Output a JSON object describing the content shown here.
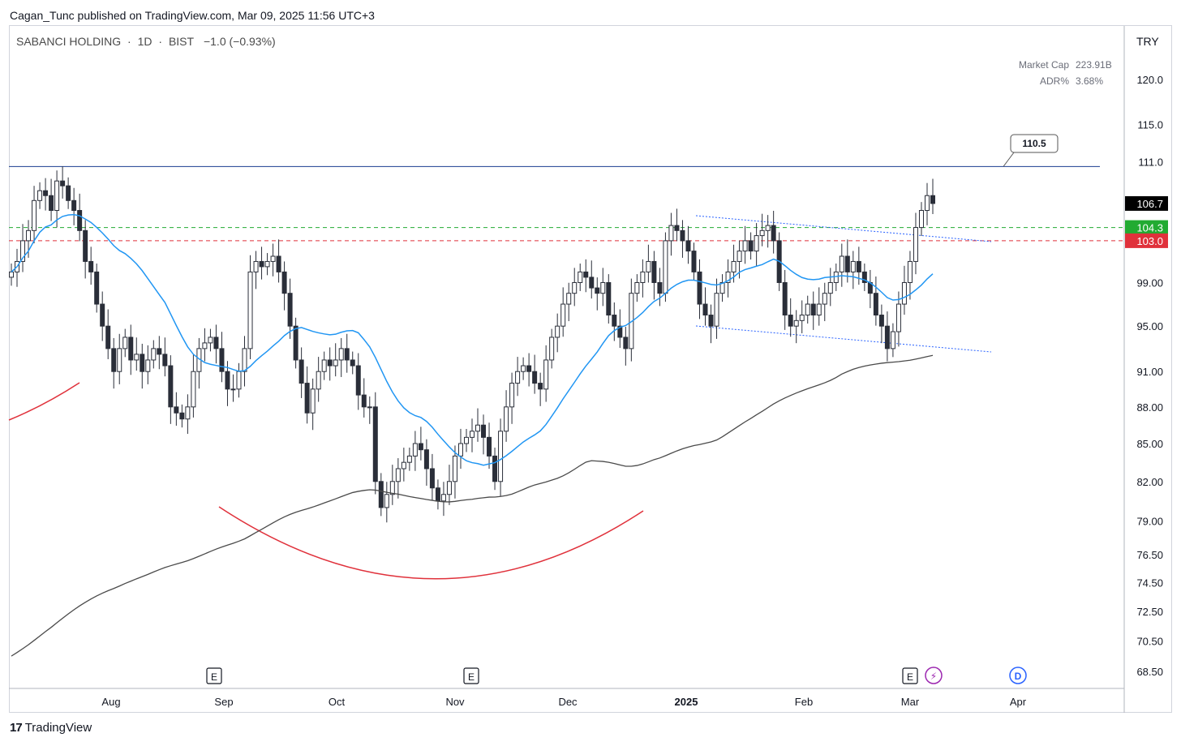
{
  "header": {
    "publisher_line": "Cagan_Tunc published on TradingView.com, Mar 09, 2025 11:56 UTC+3"
  },
  "symbol": {
    "name": "SABANCI HOLDING",
    "interval": "1D",
    "exchange": "BIST",
    "change": "−1.0 (−0.93%)",
    "separator": "·"
  },
  "stats": {
    "market_cap_label": "Market Cap",
    "market_cap_value": "223.91B",
    "adr_label": "ADR%",
    "adr_value": "3.68%"
  },
  "currency": "TRY",
  "footer": {
    "logo_glyph": "17",
    "brand": "TradingView"
  },
  "colors": {
    "up_candle": "#ffffff",
    "down_candle": "#2a2e39",
    "wick": "#2a2e39",
    "ma_blue": "#2196f3",
    "ma_dark": "#4a4a4a",
    "resistance_blue": "#1a3d8f",
    "green_level": "#22ab32",
    "red_level": "#e0313b",
    "arc_red": "#e0313b",
    "channel_blue": "#2962ff",
    "price_label_black": "#000000"
  },
  "chart_data": {
    "type": "candlestick",
    "price_axis": {
      "ticks": [
        "120.0",
        "115.0",
        "111.0",
        "99.00",
        "95.00",
        "91.00",
        "88.00",
        "85.00",
        "82.00",
        "79.00",
        "76.50",
        "74.50",
        "72.50",
        "70.50",
        "68.50"
      ],
      "scale": "log"
    },
    "time_axis": {
      "ticks": [
        "Aug",
        "Sep",
        "Oct",
        "Nov",
        "Dec",
        "2025",
        "Feb",
        "Mar",
        "Apr"
      ],
      "bold_ticks": [
        "2025"
      ]
    },
    "price_labels": [
      {
        "value": "106.7",
        "color": "#000000",
        "text_color": "#ffffff"
      },
      {
        "value": "104.3",
        "color": "#22ab32",
        "text_color": "#ffffff"
      },
      {
        "value": "103.0",
        "color": "#e0313b",
        "text_color": "#ffffff"
      }
    ],
    "horizontal_levels": [
      {
        "price": 110.5,
        "style": "solid",
        "color": "#1a3d8f",
        "label": "110.5"
      },
      {
        "price": 104.3,
        "style": "dashed",
        "color": "#22ab32"
      },
      {
        "price": 103.0,
        "style": "dashed",
        "color": "#e0313b"
      }
    ],
    "events": [
      {
        "date": "Aug",
        "type": "earnings",
        "label": "E"
      },
      {
        "date": "Oct",
        "type": "earnings",
        "label": "E"
      },
      {
        "date": "Feb",
        "type": "earnings",
        "label": "E"
      },
      {
        "date": "Mar",
        "type": "flash",
        "label": "⚡"
      },
      {
        "date": "Apr",
        "type": "dividend",
        "label": "D"
      }
    ],
    "last_close": 106.7,
    "candle_closes_approx": [
      100,
      101,
      103,
      104,
      107,
      108,
      107.5,
      106,
      109,
      108.5,
      107,
      106,
      104,
      101,
      100,
      97,
      95,
      93,
      91,
      93,
      94,
      92,
      92.5,
      91,
      92,
      93,
      92.5,
      91.5,
      88,
      87.5,
      87,
      88,
      91,
      93,
      93.5,
      94,
      93,
      91,
      89.5,
      89.5,
      91,
      93,
      100,
      101,
      100.5,
      101,
      101.5,
      100,
      98,
      95,
      92,
      90,
      87.5,
      89.5,
      91,
      92,
      91.5,
      92,
      93,
      92,
      91.5,
      89,
      88,
      88,
      82,
      80,
      81,
      82,
      83,
      83.5,
      84,
      85,
      84.5,
      83,
      81.5,
      80.5,
      81,
      82,
      84,
      85,
      85.5,
      86,
      86.5,
      85.5,
      84,
      82,
      86,
      88,
      90,
      91,
      91.5,
      91,
      90,
      89.5,
      92,
      94,
      95,
      97,
      98,
      99,
      100,
      99.5,
      98.5,
      98,
      99,
      96,
      95,
      94,
      93,
      98,
      99,
      100,
      101,
      99,
      98,
      103,
      104.5,
      104,
      103,
      102,
      100,
      97,
      96,
      95,
      98,
      99,
      100,
      101,
      102,
      103,
      102,
      103.5,
      104,
      104.5,
      103,
      99,
      96,
      95,
      95.5,
      96,
      97,
      96,
      97,
      98,
      99,
      100,
      101.5,
      100,
      101,
      100,
      99,
      98,
      96,
      95,
      93,
      94.5,
      97,
      99,
      101,
      104.3,
      106,
      107.5,
      106.7
    ],
    "moving_averages": [
      {
        "name": "",
        "color": "#2196f3"
      },
      {
        "name": "",
        "color": "#4a4a4a"
      }
    ]
  }
}
